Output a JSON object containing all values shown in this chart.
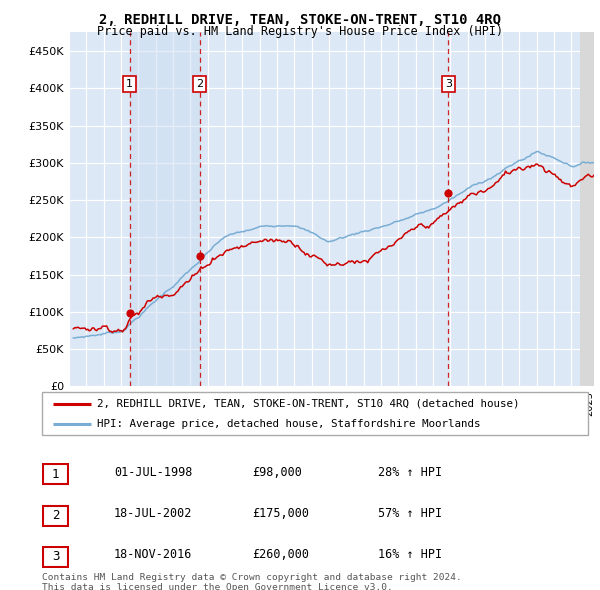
{
  "title": "2, REDHILL DRIVE, TEAN, STOKE-ON-TRENT, ST10 4RQ",
  "subtitle": "Price paid vs. HM Land Registry's House Price Index (HPI)",
  "ylabel_ticks": [
    "£0",
    "£50K",
    "£100K",
    "£150K",
    "£200K",
    "£250K",
    "£300K",
    "£350K",
    "£400K",
    "£450K"
  ],
  "yvalues": [
    0,
    50000,
    100000,
    150000,
    200000,
    250000,
    300000,
    350000,
    400000,
    450000
  ],
  "xlim_start": 1995.25,
  "xlim_end": 2025.3,
  "ylim": [
    0,
    475000
  ],
  "sale_dates": [
    1998.5,
    2002.55,
    2016.9
  ],
  "sale_prices": [
    98000,
    175000,
    260000
  ],
  "sale_labels": [
    "1",
    "2",
    "3"
  ],
  "legend_red": "2, REDHILL DRIVE, TEAN, STOKE-ON-TRENT, ST10 4RQ (detached house)",
  "legend_blue": "HPI: Average price, detached house, Staffordshire Moorlands",
  "table_rows": [
    [
      "1",
      "01-JUL-1998",
      "£98,000",
      "28% ↑ HPI"
    ],
    [
      "2",
      "18-JUL-2002",
      "£175,000",
      "57% ↑ HPI"
    ],
    [
      "3",
      "18-NOV-2016",
      "£260,000",
      "16% ↑ HPI"
    ]
  ],
  "footnote1": "Contains HM Land Registry data © Crown copyright and database right 2024.",
  "footnote2": "This data is licensed under the Open Government Licence v3.0.",
  "plot_bg": "#dce8f5",
  "grid_color": "#ffffff",
  "red_color": "#cc0000",
  "blue_color": "#7aadd4",
  "shade_color": "#ccddf0"
}
